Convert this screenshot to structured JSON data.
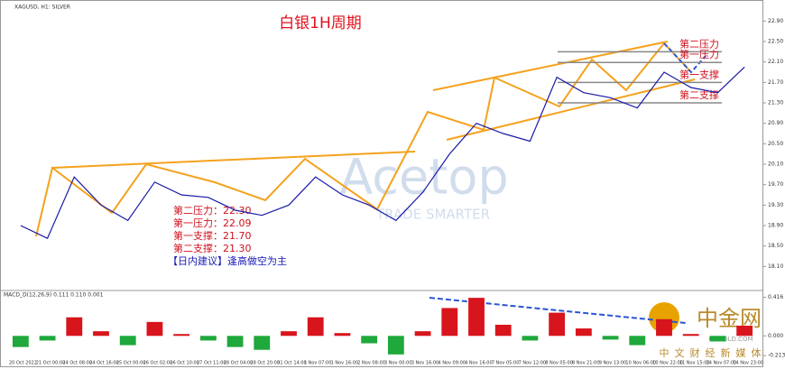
{
  "header": "XAGUSD, H1: SILVER",
  "watermark": {
    "brand": "Acetop",
    "slogan": "TRADE SMARTER",
    "site": "中金网",
    "site_url": "CNGOLD.COM",
    "site_tag": "中文财经新媒体"
  },
  "chart_data": [
    {
      "type": "line",
      "title": "白银1H周期",
      "color": "#1a1aa8",
      "categories": [
        "20 Oct 2022",
        "21 Oct 00:00",
        "24 Oct 08:00",
        "24 Oct 16:00",
        "25 Oct 00:00",
        "26 Oct 02:00",
        "26 Oct 10:00",
        "27 Oct 11:00",
        "28 Oct 04:00",
        "28 Oct 20:00",
        "31 Oct 14:00",
        "1 Nov 07:00",
        "1 Nov 16:00",
        "2 Nov 08:00",
        "3 Nov 00:00",
        "3 Nov 16:00",
        "4 Nov 09:00",
        "4 Nov 16:00",
        "7 Nov 05:00",
        "7 Nov 12:00",
        "8 Nov 05:00",
        "8 Nov 21:00",
        "9 Nov 13:00",
        "10 Nov 06:00",
        "10 Nov 22:00",
        "11 Nov 15:00",
        "14 Nov 07:00",
        "14 Nov 23:00"
      ],
      "values": [
        18.9,
        18.65,
        19.85,
        19.3,
        19.0,
        19.75,
        19.5,
        19.45,
        19.2,
        19.1,
        19.3,
        19.85,
        19.5,
        19.3,
        19.0,
        19.55,
        20.3,
        20.9,
        20.7,
        20.55,
        21.8,
        21.5,
        21.4,
        21.2,
        21.9,
        21.6,
        21.5,
        22.0
      ],
      "ylim": [
        17.7,
        23.1
      ],
      "yticks": [
        {
          "value": 18.1,
          "label": "18.10"
        },
        {
          "value": 18.5,
          "label": "18.50"
        },
        {
          "value": 18.9,
          "label": "18.90"
        },
        {
          "value": 19.3,
          "label": "19.30"
        },
        {
          "value": 19.7,
          "label": "19.70"
        },
        {
          "value": 20.1,
          "label": "20.10"
        },
        {
          "value": 20.5,
          "label": "20.50"
        },
        {
          "value": 20.9,
          "label": "20.90"
        },
        {
          "value": 21.3,
          "label": "21.30"
        },
        {
          "value": 21.7,
          "label": "21.70"
        },
        {
          "value": 22.1,
          "label": "22.10"
        },
        {
          "value": 22.5,
          "label": "22.50"
        },
        {
          "value": 22.9,
          "label": "22.90"
        }
      ],
      "levels": [
        {
          "name": "第二压力",
          "label": "第二压力：22.30",
          "value": 22.3
        },
        {
          "name": "第一压力",
          "label": "第一压力：22.09",
          "value": 22.09
        },
        {
          "name": "第一支撑",
          "label": "第一支撑：21.70",
          "value": 21.7
        },
        {
          "name": "第二支撑",
          "label": "第二支撑：21.30",
          "value": 21.3
        }
      ],
      "advice": "【日内建议】逢高做空为主"
    },
    {
      "type": "bar",
      "label": "MACD_D(12,26,9) 0.111 0.110 0.001",
      "positive_color": "#d8141c",
      "negative_color": "#1fa83b",
      "values": [
        -0.12,
        -0.05,
        0.2,
        0.05,
        -0.1,
        0.15,
        0.02,
        -0.05,
        -0.12,
        -0.15,
        0.05,
        0.2,
        0.03,
        -0.08,
        -0.2,
        0.05,
        0.3,
        0.41,
        0.12,
        -0.05,
        0.25,
        0.08,
        -0.04,
        -0.1,
        0.18,
        0.02,
        -0.06,
        0.11
      ],
      "ylim": [
        -0.25,
        0.45
      ],
      "yticks": [
        {
          "value": -0.213,
          "label": "-0.213"
        },
        {
          "value": 0,
          "label": "0.000"
        },
        {
          "value": 0.416,
          "label": "0.416"
        }
      ]
    }
  ]
}
